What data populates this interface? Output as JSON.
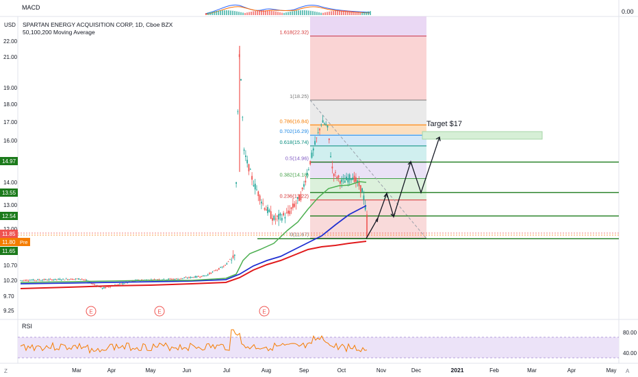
{
  "header": {
    "macd_label": "MACD",
    "macd_value": "0.00",
    "currency": "USD",
    "symbol_title": "SPARTAN ENERGY ACQUISITION CORP, 1D, Cboe BZX",
    "ma_legend": "50,100,200 Moving Average",
    "rsi_label": "RSI"
  },
  "colors": {
    "up": "#26a69a",
    "down": "#ef5350",
    "ma50": "#4caf50",
    "ma100": "#1f2fd1",
    "ma200": "#e0191b",
    "hline": "#1b7a1b",
    "fib_label_red": "#d32f2f",
    "rsi_line": "#f57c00",
    "rsi_band": "#ece3f8"
  },
  "chart_data": {
    "type": "candlestick",
    "title": "SPARTAN ENERGY ACQUISITION CORP, 1D, Cboe BZX",
    "y_axis": {
      "unit": "USD",
      "range": [
        9.1,
        23.4
      ],
      "ticks": [
        "22.00",
        "21.00",
        "19.00",
        "18.00",
        "17.00",
        "16.00",
        "14.00",
        "13.00",
        "12.00",
        "10.70",
        "10.20",
        "9.70",
        "9.25"
      ]
    },
    "x_axis": {
      "ticks": [
        "Mar",
        "Apr",
        "May",
        "Jun",
        "Jul",
        "Aug",
        "Sep",
        "Oct",
        "Nov",
        "Dec",
        "2021",
        "Feb",
        "Mar",
        "Apr",
        "May"
      ]
    },
    "price_labels": [
      {
        "text": "14.97",
        "value": 14.97,
        "color": "#1b7a1b"
      },
      {
        "text": "13.55",
        "value": 13.55,
        "color": "#1b7a1b"
      },
      {
        "text": "12.54",
        "value": 12.54,
        "color": "#1b7a1b"
      },
      {
        "text": "11.85",
        "value": 11.85,
        "color": "#ef5350"
      },
      {
        "text": "11.80",
        "value": 11.8,
        "color": "#f57c00",
        "tag": "Pre"
      },
      {
        "text": "11.65",
        "value": 11.65,
        "color": "#1b7a1b"
      }
    ],
    "horizontal_levels": [
      14.97,
      13.55,
      12.54,
      11.65
    ],
    "fibonacci": [
      {
        "label": "1.618(22.32)",
        "value": 22.32,
        "color": "#d32f2f"
      },
      {
        "label": "1(18.25)",
        "value": 18.25,
        "color": "#787878"
      },
      {
        "label": "0.786(16.84)",
        "value": 16.84,
        "color": "#f57c00"
      },
      {
        "label": "0.702(16.29)",
        "value": 16.29,
        "color": "#1e88e5"
      },
      {
        "label": "0.618(15.74)",
        "value": 15.74,
        "color": "#00897b"
      },
      {
        "label": "0.5(14.96)",
        "value": 14.96,
        "color": "#7e57c2"
      },
      {
        "label": "0.382(14.18)",
        "value": 14.18,
        "color": "#43a047"
      },
      {
        "label": "0.236(13.22)",
        "value": 13.22,
        "color": "#d32f2f"
      },
      {
        "label": "0(11.67)",
        "value": 11.67,
        "color": "#787878"
      }
    ],
    "annotation": "Target $17",
    "earnings_marker": "E",
    "rsi": {
      "ticks": [
        "80.00",
        "40.00"
      ],
      "band": [
        30,
        70
      ]
    }
  }
}
